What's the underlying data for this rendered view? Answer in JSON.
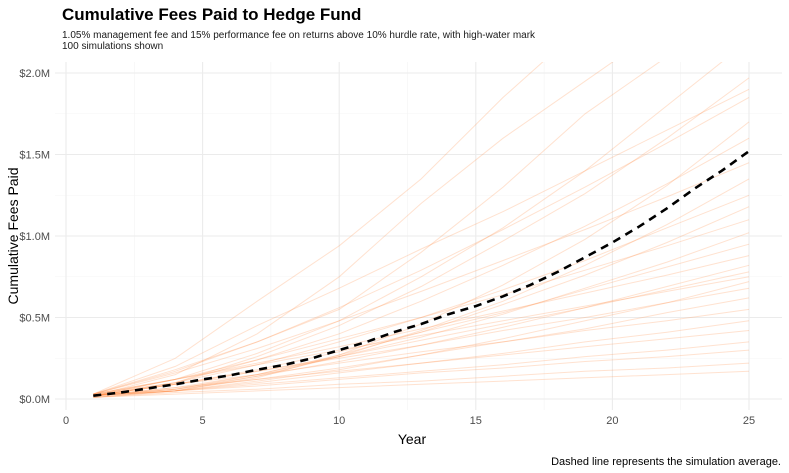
{
  "chart_data": {
    "type": "line",
    "title": "Cumulative Fees Paid to Hedge Fund",
    "subtitle": [
      "1.05% management fee and 15% performance fee on returns above 10% hurdle rate, with high-water mark",
      "100 simulations shown"
    ],
    "xlabel": "Year",
    "ylabel": "Cumulative Fees Paid",
    "caption": "Dashed line represents the simulation average.",
    "xlim": [
      0,
      25
    ],
    "ylim": [
      0,
      2.0
    ],
    "x_ticks": [
      0,
      5,
      10,
      15,
      20,
      25
    ],
    "x_tick_labels": [
      "0",
      "5",
      "10",
      "15",
      "20",
      "25"
    ],
    "y_ticks": [
      0,
      0.5,
      1.0,
      1.5,
      2.0
    ],
    "y_tick_labels": [
      "$0.0M",
      "$0.5M",
      "$1.0M",
      "$1.5M",
      "$2.0M"
    ],
    "y_unit": "$M",
    "grid": true,
    "legend": "none",
    "colors": {
      "simulation": "#FF8C42",
      "average": "#000000"
    },
    "average": {
      "x": [
        1,
        2,
        3,
        4,
        5,
        6,
        7,
        8,
        9,
        10,
        11,
        12,
        13,
        14,
        15,
        16,
        17,
        18,
        19,
        20,
        21,
        22,
        23,
        24,
        25
      ],
      "values": [
        0.02,
        0.04,
        0.065,
        0.09,
        0.12,
        0.145,
        0.18,
        0.21,
        0.25,
        0.3,
        0.35,
        0.41,
        0.46,
        0.52,
        0.57,
        0.63,
        0.7,
        0.78,
        0.87,
        0.96,
        1.06,
        1.17,
        1.29,
        1.4,
        1.52
      ]
    },
    "simulations_x": [
      1,
      4,
      7,
      10,
      13,
      16,
      19,
      22,
      25
    ],
    "simulations": [
      [
        0.02,
        0.1,
        0.26,
        0.45,
        0.69,
        0.97,
        1.26,
        1.6,
        1.97
      ],
      [
        0.03,
        0.17,
        0.35,
        0.56,
        0.79,
        1.04,
        1.3,
        1.57,
        1.85
      ],
      [
        0.02,
        0.05,
        0.13,
        0.27,
        0.46,
        0.7,
        0.98,
        1.31,
        1.7
      ],
      [
        0.02,
        0.1,
        0.24,
        0.4,
        0.6,
        0.82,
        1.06,
        1.32,
        1.6
      ],
      [
        0.03,
        0.16,
        0.31,
        0.48,
        0.66,
        0.85,
        1.04,
        1.24,
        1.45
      ],
      [
        0.02,
        0.05,
        0.14,
        0.26,
        0.42,
        0.6,
        0.82,
        1.07,
        1.35
      ],
      [
        0.03,
        0.1,
        0.21,
        0.35,
        0.5,
        0.67,
        0.85,
        1.05,
        1.25
      ],
      [
        0.02,
        0.06,
        0.15,
        0.27,
        0.41,
        0.58,
        0.76,
        0.96,
        1.18
      ],
      [
        0.03,
        0.12,
        0.24,
        0.37,
        0.5,
        0.64,
        0.79,
        0.94,
        1.1
      ],
      [
        0.02,
        0.07,
        0.15,
        0.26,
        0.38,
        0.52,
        0.68,
        0.84,
        1.02
      ],
      [
        0.02,
        0.09,
        0.18,
        0.29,
        0.41,
        0.53,
        0.67,
        0.81,
        0.95
      ],
      [
        0.02,
        0.12,
        0.22,
        0.32,
        0.43,
        0.54,
        0.65,
        0.76,
        0.88
      ],
      [
        0.02,
        0.06,
        0.14,
        0.23,
        0.33,
        0.44,
        0.56,
        0.69,
        0.82
      ],
      [
        0.02,
        0.09,
        0.17,
        0.26,
        0.36,
        0.46,
        0.56,
        0.67,
        0.78
      ],
      [
        0.03,
        0.12,
        0.21,
        0.3,
        0.39,
        0.48,
        0.57,
        0.66,
        0.75
      ],
      [
        0.02,
        0.05,
        0.11,
        0.18,
        0.27,
        0.37,
        0.48,
        0.59,
        0.72
      ],
      [
        0.02,
        0.09,
        0.17,
        0.25,
        0.33,
        0.42,
        0.5,
        0.59,
        0.68
      ],
      [
        0.02,
        0.06,
        0.12,
        0.19,
        0.27,
        0.35,
        0.43,
        0.53,
        0.62
      ],
      [
        0.02,
        0.09,
        0.15,
        0.22,
        0.29,
        0.35,
        0.42,
        0.48,
        0.55
      ],
      [
        0.02,
        0.05,
        0.1,
        0.16,
        0.22,
        0.28,
        0.35,
        0.41,
        0.48
      ],
      [
        0.02,
        0.07,
        0.12,
        0.17,
        0.22,
        0.27,
        0.32,
        0.37,
        0.42
      ],
      [
        0.01,
        0.05,
        0.09,
        0.13,
        0.17,
        0.21,
        0.26,
        0.3,
        0.35
      ],
      [
        0.01,
        0.05,
        0.08,
        0.12,
        0.16,
        0.19,
        0.23,
        0.26,
        0.3
      ],
      [
        0.01,
        0.04,
        0.06,
        0.09,
        0.11,
        0.14,
        0.17,
        0.19,
        0.22
      ],
      [
        0.01,
        0.03,
        0.05,
        0.07,
        0.09,
        0.11,
        0.13,
        0.15,
        0.17
      ],
      [
        0.03,
        0.25,
        0.6,
        0.94,
        1.35,
        1.85,
        2.3,
        2.7,
        3.1
      ],
      [
        0.02,
        0.15,
        0.4,
        0.75,
        1.2,
        1.6,
        1.95,
        2.3,
        2.6
      ],
      [
        0.03,
        0.18,
        0.35,
        0.55,
        0.9,
        1.3,
        1.75,
        2.1,
        2.4
      ],
      [
        0.02,
        0.12,
        0.28,
        0.48,
        0.75,
        1.05,
        1.4,
        1.8,
        2.2
      ],
      [
        0.03,
        0.2,
        0.45,
        0.68,
        0.92,
        1.15,
        1.4,
        1.65,
        1.9
      ]
    ]
  }
}
